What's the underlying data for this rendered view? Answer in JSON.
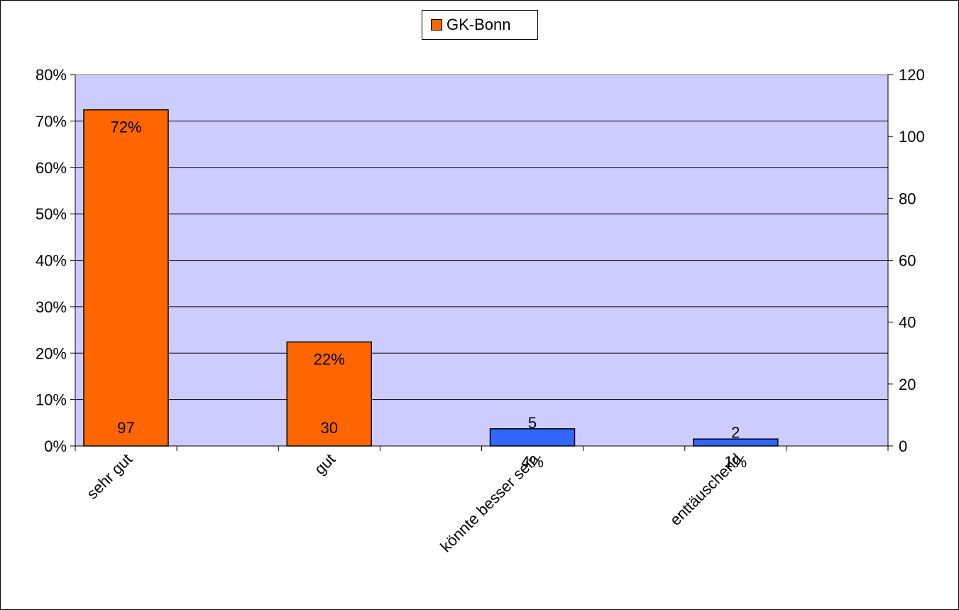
{
  "chart_data": {
    "type": "bar",
    "categories": [
      "sehr gut",
      "gut",
      "könnte besser sein",
      "enttäuschend"
    ],
    "series": [
      {
        "name": "GK-Bonn",
        "percent_values": [
          72.4,
          22.4,
          3.7,
          1.5
        ],
        "percent_labels": [
          "72%",
          "22%",
          "4%",
          "1%"
        ],
        "count_values": [
          97,
          30,
          5,
          2
        ],
        "count_labels": [
          "97",
          "30",
          "5",
          "2"
        ],
        "bar_colors": [
          "#ff6600",
          "#ff6600",
          "#3366ff",
          "#3366ff"
        ]
      }
    ],
    "y_left": {
      "ylim": [
        0,
        80
      ],
      "ticks": [
        "0%",
        "10%",
        "20%",
        "30%",
        "40%",
        "50%",
        "60%",
        "70%",
        "80%"
      ]
    },
    "y_right": {
      "ylim": [
        0,
        120
      ],
      "ticks": [
        "0",
        "20",
        "40",
        "60",
        "80",
        "100",
        "120"
      ]
    },
    "legend": {
      "label": "GK-Bonn",
      "color": "#ff6600",
      "placement": "top-center"
    },
    "plot_background": "#ccccff",
    "grid": true
  }
}
